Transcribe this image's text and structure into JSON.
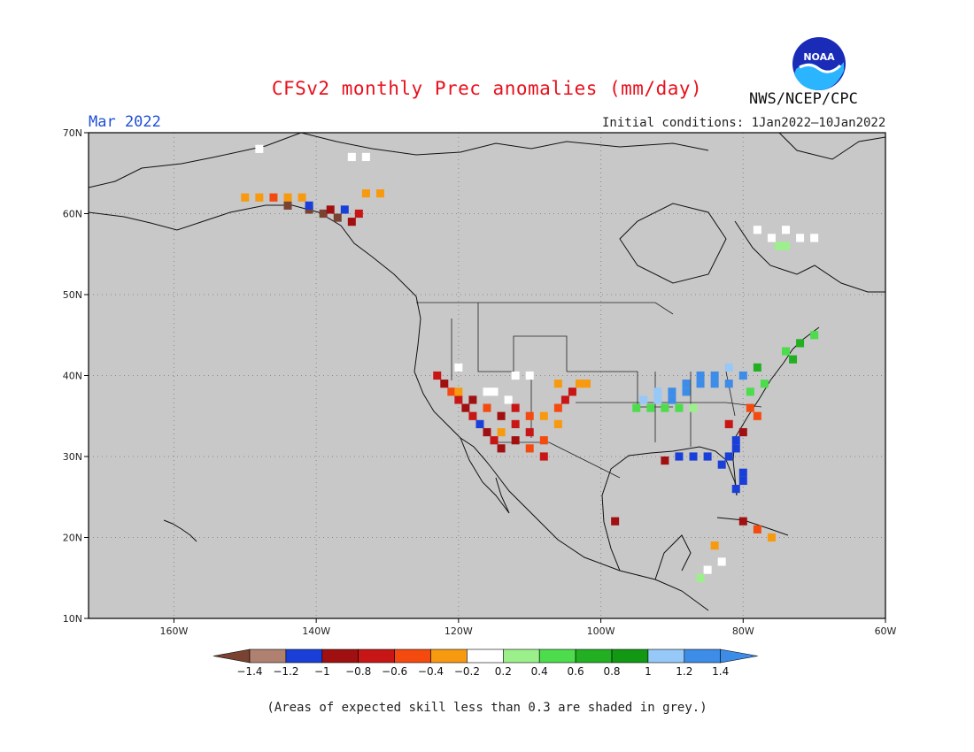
{
  "header": {
    "title": "CFSv2 monthly Prec anomalies (mm/day)",
    "org": "NWS/NCEP/CPC",
    "month": "Mar 2022",
    "initial_conditions": "Initial conditions: 1Jan2022–10Jan2022",
    "logo_text": "NOAA"
  },
  "footer": {
    "note": "(Areas of expected skill less than 0.3 are shaded in grey.)"
  },
  "map": {
    "lon_range": [
      -172,
      -60
    ],
    "lat_range": [
      10,
      70
    ],
    "lon_labels": [
      "160W",
      "140W",
      "120W",
      "100W",
      "80W",
      "60W"
    ],
    "lat_labels": [
      "70N",
      "60N",
      "50N",
      "40N",
      "30N",
      "20N",
      "10N"
    ],
    "background_color": "#c8c8c8",
    "grid": true
  },
  "legend": {
    "ticks": [
      "−1.4",
      "−1.2",
      "−1",
      "−0.8",
      "−0.6",
      "−0.4",
      "−0.2",
      "0.2",
      "0.4",
      "0.6",
      "0.8",
      "1",
      "1.2",
      "1.4"
    ],
    "colors": [
      "#7a4230",
      "#b08070",
      "#1a3fd8",
      "#a01010",
      "#c81616",
      "#f44a10",
      "#f89a10",
      "#ffffff",
      "#9cf08c",
      "#4cdc4c",
      "#22b022",
      "#129812",
      "#96c8f8",
      "#3c8ce8",
      "#3c8ce8"
    ],
    "arrow_left_color": "#7a4230",
    "arrow_right_color": "#3c8ce8"
  }
}
